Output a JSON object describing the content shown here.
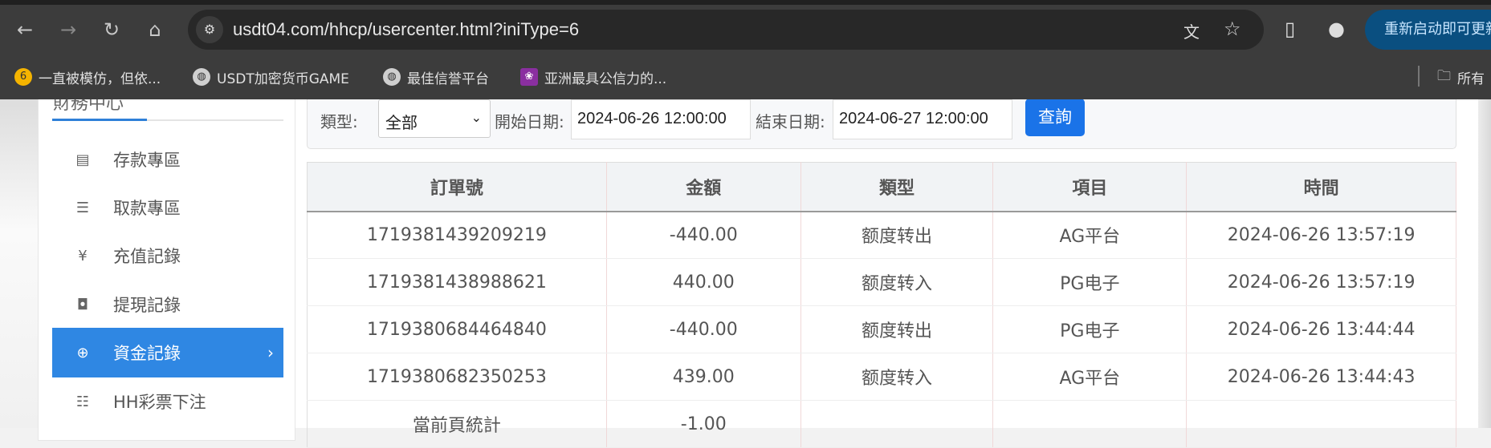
{
  "browser": {
    "url": "usdt04.com/hhcp/usercenter.html?iniType=6",
    "restart_label": "重新启动即可更新",
    "bookmarks": [
      {
        "label": "一直被模仿，但依...",
        "icon": "bookmark-6-icon",
        "color": "#f5b400"
      },
      {
        "label": "USDT加密货币GAME",
        "icon": "globe-icon",
        "color": "#cfcfcf"
      },
      {
        "label": "最佳信誉平台",
        "icon": "globe-icon",
        "color": "#cfcfcf"
      },
      {
        "label": "亚洲最具公信力的...",
        "icon": "site-favicon-icon",
        "color": "#8a2fa0"
      }
    ],
    "all_bookmarks_label": "所有"
  },
  "sidebar": {
    "title": "財務中心",
    "items": [
      {
        "label": "存款專區",
        "icon": "card-icon"
      },
      {
        "label": "取款專區",
        "icon": "hand-money-icon"
      },
      {
        "label": "充值記錄",
        "icon": "money-bag-icon"
      },
      {
        "label": "提現記錄",
        "icon": "wallet-icon"
      },
      {
        "label": "資金記錄",
        "icon": "funds-icon",
        "active": true
      },
      {
        "label": "HH彩票下注",
        "icon": "list-icon"
      }
    ]
  },
  "filter": {
    "type_label": "類型:",
    "type_value": "全部",
    "start_label": "開始日期:",
    "start_value": "2024-06-26 12:00:00",
    "end_label": "結束日期:",
    "end_value": "2024-06-27 12:00:00",
    "query_label": "查詢"
  },
  "table": {
    "headers": [
      "訂單號",
      "金額",
      "類型",
      "項目",
      "時間"
    ],
    "rows": [
      [
        "1719381439209219",
        "-440.00",
        "额度转出",
        "AG平台",
        "2024-06-26 13:57:19"
      ],
      [
        "1719381438988621",
        "440.00",
        "额度转入",
        "PG电子",
        "2024-06-26 13:57:19"
      ],
      [
        "1719380684464840",
        "-440.00",
        "额度转出",
        "PG电子",
        "2024-06-26 13:44:44"
      ],
      [
        "1719380682350253",
        "439.00",
        "额度转入",
        "AG平台",
        "2024-06-26 13:44:43"
      ]
    ],
    "summary": [
      "當前頁統計",
      "-1.00",
      "",
      "",
      ""
    ]
  },
  "colors": {
    "accent": "#2f87e3",
    "button": "#1a73e8"
  }
}
